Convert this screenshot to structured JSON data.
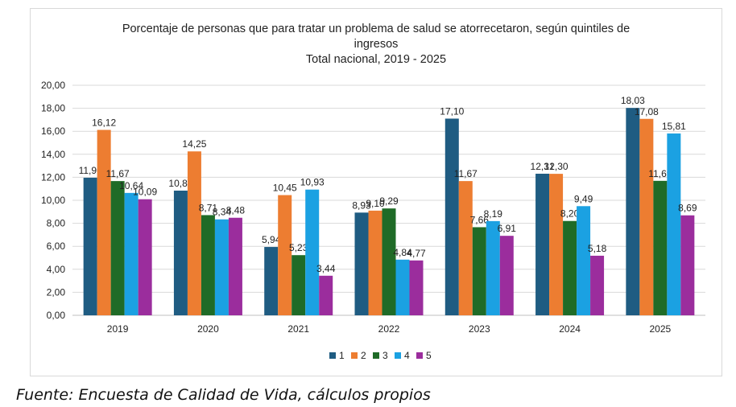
{
  "title_lines": [
    "Porcentaje de personas que para tratar un problema de salud se atorrecetaron, según quintiles de",
    "ingresos",
    "Total nacional, 2019 - 2025"
  ],
  "source": "Fuente: Encuesta de Calidad de Vida, cálculos propios",
  "chart_data": {
    "type": "bar",
    "title": "Porcentaje de personas que para tratar un problema de salud se atorrecetaron, según quintiles de ingresos",
    "subtitle": "Total nacional, 2019 - 2025",
    "categories": [
      "2019",
      "2020",
      "2021",
      "2022",
      "2023",
      "2024",
      "2025"
    ],
    "series": [
      {
        "name": "1",
        "color": "#1f5c82",
        "values": [
          11.96,
          10.84,
          5.94,
          8.93,
          17.1,
          12.31,
          18.03
        ],
        "labels": [
          "11,96",
          "10,84",
          "5,94",
          "8,93",
          "17,10",
          "12,31",
          "18,03"
        ]
      },
      {
        "name": "2",
        "color": "#ed7d31",
        "values": [
          16.12,
          14.25,
          10.45,
          9.1,
          11.67,
          12.3,
          17.08
        ],
        "labels": [
          "16,12",
          "14,25",
          "10,45",
          "9,10",
          "11,67",
          "12,30",
          "17,08"
        ]
      },
      {
        "name": "3",
        "color": "#1f6b27",
        "values": [
          11.67,
          8.71,
          5.23,
          9.29,
          7.66,
          8.2,
          11.69
        ],
        "labels": [
          "11,67",
          "8,71",
          "5,23",
          "9,29",
          "7,66",
          "8,20",
          "11,69"
        ]
      },
      {
        "name": "4",
        "color": "#1ba1e2",
        "values": [
          10.64,
          8.34,
          10.93,
          4.84,
          8.19,
          9.49,
          15.81
        ],
        "labels": [
          "10,64",
          "8,34",
          "10,93",
          "4,84",
          "8,19",
          "9,49",
          "15,81"
        ]
      },
      {
        "name": "5",
        "color": "#9b2d9d",
        "values": [
          10.09,
          8.48,
          3.44,
          4.77,
          6.91,
          5.18,
          8.69
        ],
        "labels": [
          "10,09",
          "8,48",
          "3,44",
          "4,77",
          "6,91",
          "5,18",
          "8,69"
        ]
      }
    ],
    "yticks": [
      "0,00",
      "2,00",
      "4,00",
      "6,00",
      "8,00",
      "10,00",
      "12,00",
      "14,00",
      "16,00",
      "18,00",
      "20,00"
    ],
    "ylim": [
      0,
      20
    ],
    "grid": true,
    "legend_position": "bottom"
  }
}
